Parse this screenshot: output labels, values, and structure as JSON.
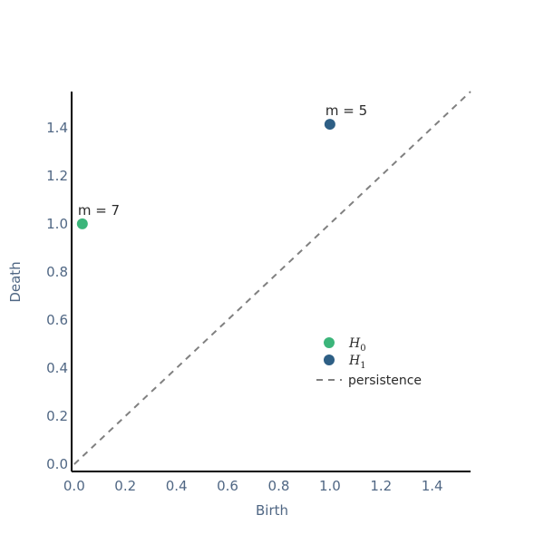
{
  "chart_data": {
    "type": "scatter",
    "title": "",
    "xlabel": "Birth",
    "ylabel": "Death",
    "xlim": [
      -0.01,
      1.55
    ],
    "ylim": [
      -0.03,
      1.55
    ],
    "xticks": [
      0.0,
      0.2,
      0.4,
      0.6,
      0.8,
      1.0,
      1.2,
      1.4
    ],
    "xtick_labels": [
      "0.0",
      "0.2",
      "0.4",
      "0.6",
      "0.8",
      "1.0",
      "1.2",
      "1.4"
    ],
    "yticks": [
      0.0,
      0.2,
      0.4,
      0.6,
      0.8,
      1.0,
      1.2,
      1.4
    ],
    "ytick_labels": [
      "0.0",
      "0.2",
      "0.4",
      "0.6",
      "0.8",
      "1.0",
      "1.2",
      "1.4"
    ],
    "grid": false,
    "legend_position": "lower-right",
    "series": [
      {
        "name": "H",
        "subscript": "0",
        "color": "#3bb57a",
        "points": [
          {
            "x": 0.0,
            "y": 1.0,
            "label": "m = 7"
          }
        ]
      },
      {
        "name": "H",
        "subscript": "1",
        "color": "#2e5f85",
        "points": [
          {
            "x": 1.0,
            "y": 1.414,
            "label": "m = 5"
          }
        ]
      }
    ],
    "reference_line": {
      "name": "persistence",
      "style": "dashed",
      "color": "#808080",
      "from": [
        0.0,
        0.0
      ],
      "to": [
        1.55,
        1.55
      ]
    }
  }
}
